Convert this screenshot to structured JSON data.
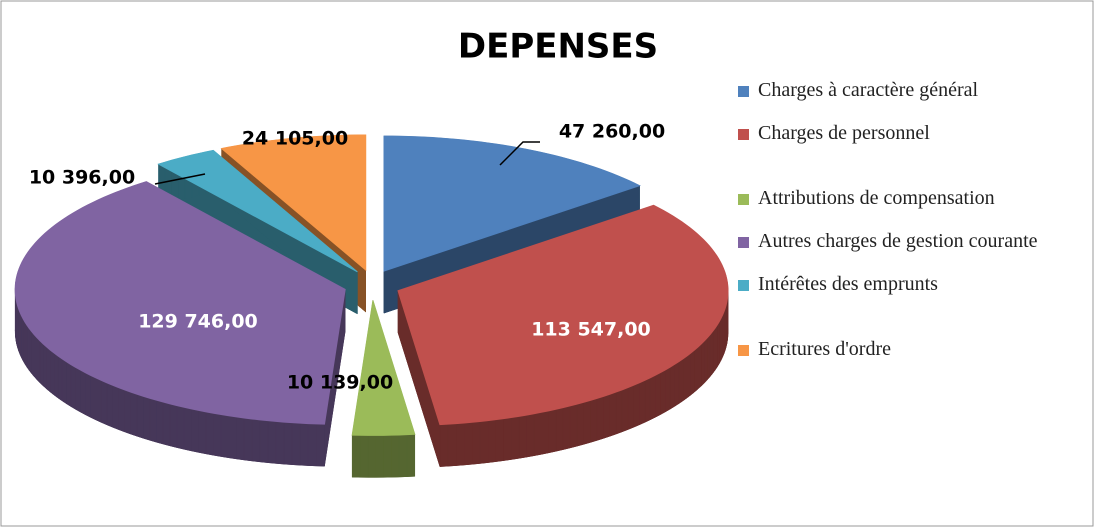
{
  "chart_data": {
    "type": "pie",
    "title": "DEPENSES",
    "categories": [
      "Charges à caractère général",
      "Charges de personnel",
      "Attributions de compensation",
      "Autres charges de gestion courante",
      "Intérêtes des emprunts",
      "Ecritures d'ordre"
    ],
    "values": [
      47260,
      113547,
      10139,
      129746,
      10396,
      24105
    ],
    "value_labels": [
      "47 260,00",
      "113 547,00",
      "10 139,00",
      "129 746,00",
      "10 396,00",
      "24 105,00"
    ],
    "colors": [
      "#4f81bd",
      "#c0504d",
      "#9bbb59",
      "#8064a2",
      "#4bacc6",
      "#f79646"
    ],
    "legend": "right"
  }
}
